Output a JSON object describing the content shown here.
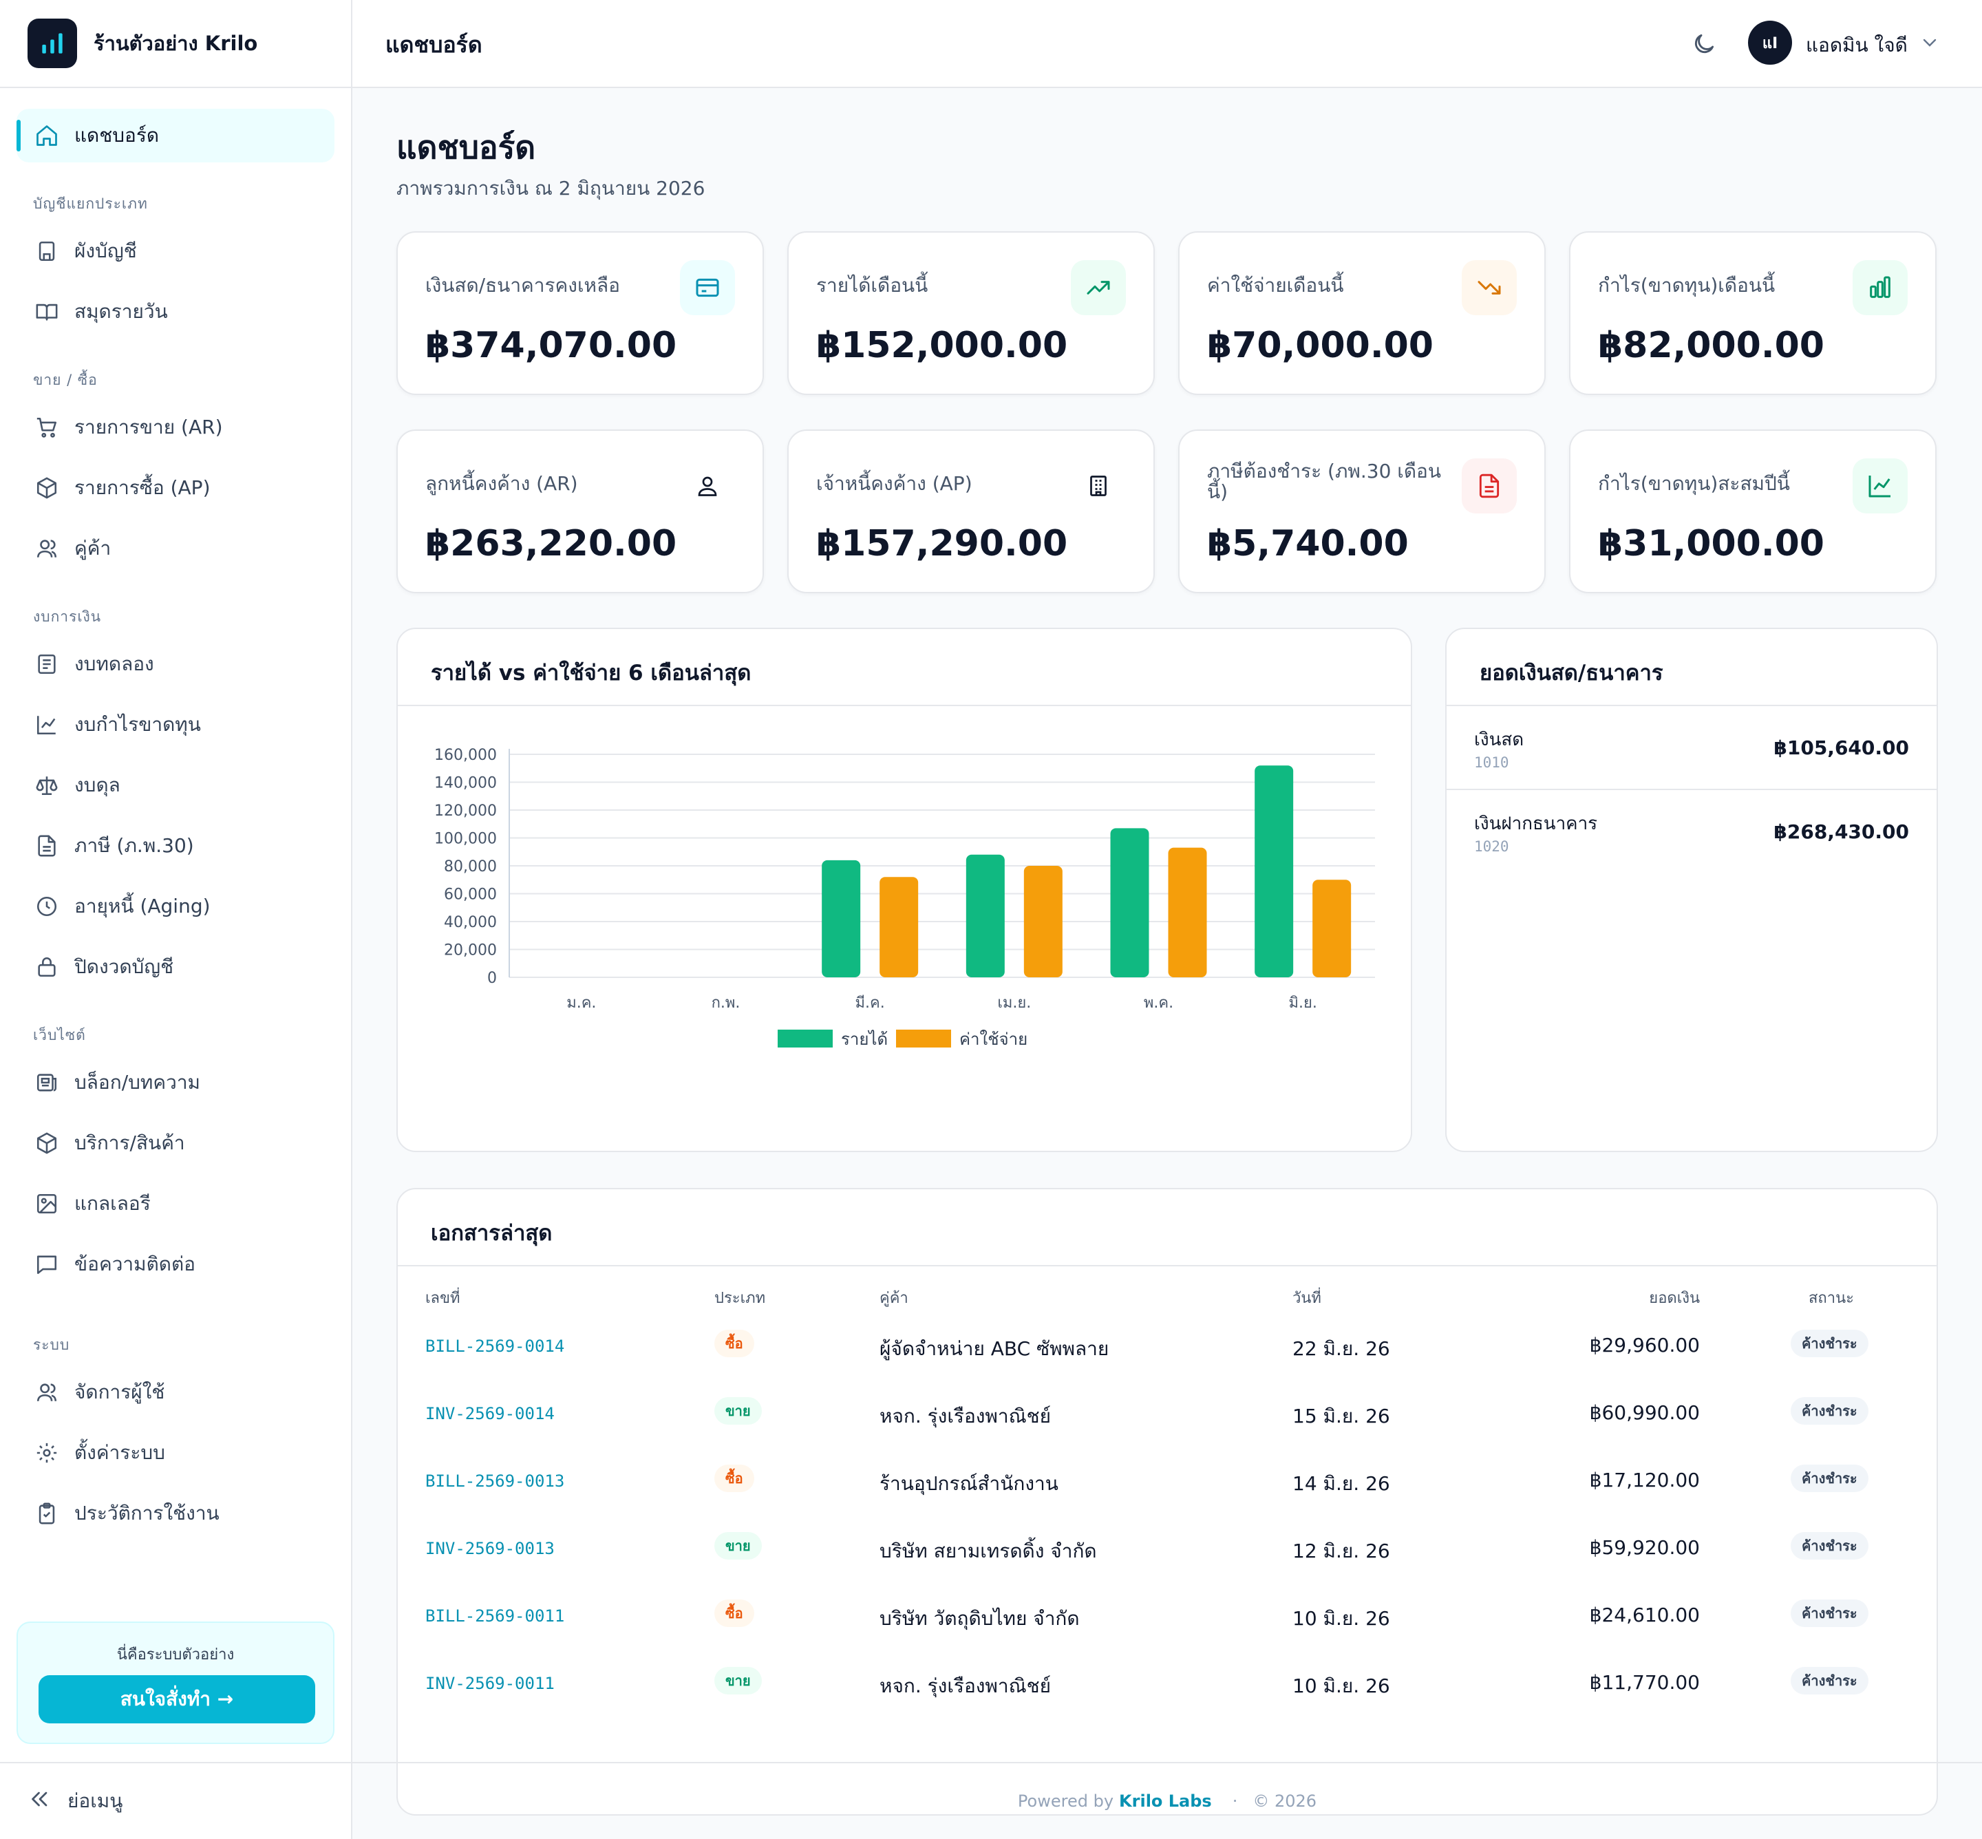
{
  "app": {
    "name": "ร้านตัวอย่าง Krilo"
  },
  "topbar": {
    "title": "แดชบอร์ด",
    "user_initials": "แI",
    "user_name": "แอดมิน ใจดี"
  },
  "sidebar": {
    "active": "แดชบอร์ด",
    "sections": {
      "ledger": "บัญชีแยกประเภท",
      "sales": "ขาย / ซื้อ",
      "finance": "งบการเงิน",
      "website": "เว็บไซต์",
      "system": "ระบบ"
    },
    "items": {
      "dashboard": "แดชบอร์ด",
      "chart_of_accounts": "ผังบัญชี",
      "journal": "สมุดรายวัน",
      "sales_ar": "รายการขาย (AR)",
      "purchases_ap": "รายการซื้อ (AP)",
      "partners": "คู่ค้า",
      "trial_balance": "งบทดลอง",
      "profit_loss": "งบกำไรขาดทุน",
      "balance_sheet": "งบดุล",
      "tax": "ภาษี (ภ.พ.30)",
      "aging": "อายุหนี้ (Aging)",
      "close_period": "ปิดงวดบัญชี",
      "blog": "บล็อก/บทความ",
      "services": "บริการ/สินค้า",
      "gallery": "แกลเลอรี",
      "contact": "ข้อความติดต่อ",
      "users": "จัดการผู้ใช้",
      "settings": "ตั้งค่าระบบ",
      "audit": "ประวัติการใช้งาน"
    },
    "promo_text": "นี่คือระบบตัวอย่าง",
    "promo_button": "สนใจสั่งทำ →",
    "collapse_label": "ย่อเมนู"
  },
  "page": {
    "title": "แดชบอร์ด",
    "subtitle": "ภาพรวมการเงิน ณ 2 มิถุนายน 2026"
  },
  "cards": [
    {
      "label": "เงินสด/ธนาคารคงเหลือ",
      "value": "฿374,070.00",
      "icon": "credit-card-icon"
    },
    {
      "label": "รายได้เดือนนี้",
      "value": "฿152,000.00",
      "icon": "trending-up-icon"
    },
    {
      "label": "ค่าใช้จ่ายเดือนนี้",
      "value": "฿70,000.00",
      "icon": "trending-down-icon"
    },
    {
      "label": "กำไร(ขาดทุน)เดือนนี้",
      "value": "฿82,000.00",
      "icon": "bar-chart-icon"
    },
    {
      "label": "ลูกหนี้คงค้าง (AR)",
      "value": "฿263,220.00",
      "icon": "user-icon"
    },
    {
      "label": "เจ้าหนี้คงค้าง (AP)",
      "value": "฿157,290.00",
      "icon": "building-icon"
    },
    {
      "label": "ภาษีต้องชำระ (ภพ.30 เดือนนี้)",
      "value": "฿5,740.00",
      "icon": "document-icon"
    },
    {
      "label": "กำไร(ขาดทุน)สะสมปีนี้",
      "value": "฿31,000.00",
      "icon": "line-chart-icon"
    }
  ],
  "chart_panel": {
    "title": "รายได้ vs ค่าใช้จ่าย 6 เดือนล่าสุด"
  },
  "chart_data": {
    "type": "bar",
    "title": "รายได้ vs ค่าใช้จ่าย 6 เดือนล่าสุด",
    "categories": [
      "ม.ค.",
      "ก.พ.",
      "มี.ค.",
      "เม.ย.",
      "พ.ค.",
      "มิ.ย."
    ],
    "series": [
      {
        "name": "รายได้",
        "values": [
          0,
          0,
          84000,
          88000,
          107000,
          152000
        ],
        "color": "#10b981"
      },
      {
        "name": "ค่าใช้จ่าย",
        "values": [
          0,
          0,
          72000,
          80000,
          93000,
          70000
        ],
        "color": "#f59e0b"
      }
    ],
    "ylim": [
      0,
      160000
    ],
    "yticks": [
      "160,000",
      "140,000",
      "120,000",
      "100,000",
      "80,000",
      "60,000",
      "40,000",
      "20,000",
      "0"
    ],
    "ytick_values": [
      160000,
      140000,
      120000,
      100000,
      80000,
      60000,
      40000,
      20000,
      0
    ],
    "grid": true,
    "legend": "bottom-center"
  },
  "bank_panel": {
    "title": "ยอดเงินสด/ธนาคาร",
    "rows": [
      {
        "name": "เงินสด",
        "code": "1010",
        "amount": "฿105,640.00"
      },
      {
        "name": "เงินฝากธนาคาร",
        "code": "1020",
        "amount": "฿268,430.00"
      }
    ]
  },
  "docs": {
    "title": "เอกสารล่าสุด",
    "headers": {
      "number": "เลขที่",
      "type": "ประเภท",
      "partner": "คู่ค้า",
      "date": "วันที่",
      "amount": "ยอดเงิน",
      "status": "สถานะ"
    },
    "rows": [
      {
        "number": "BILL-2569-0014",
        "type": "ซื้อ",
        "kind": "buy",
        "partner": "ผู้จัดจำหน่าย ABC ซัพพลาย",
        "date": "22 มิ.ย. 26",
        "amount": "฿29,960.00",
        "status": "ค้างชำระ"
      },
      {
        "number": "INV-2569-0014",
        "type": "ขาย",
        "kind": "sell",
        "partner": "หจก. รุ่งเรืองพาณิชย์",
        "date": "15 มิ.ย. 26",
        "amount": "฿60,990.00",
        "status": "ค้างชำระ"
      },
      {
        "number": "BILL-2569-0013",
        "type": "ซื้อ",
        "kind": "buy",
        "partner": "ร้านอุปกรณ์สำนักงาน",
        "date": "14 มิ.ย. 26",
        "amount": "฿17,120.00",
        "status": "ค้างชำระ"
      },
      {
        "number": "INV-2569-0013",
        "type": "ขาย",
        "kind": "sell",
        "partner": "บริษัท สยามเทรดดิ้ง จำกัด",
        "date": "12 มิ.ย. 26",
        "amount": "฿59,920.00",
        "status": "ค้างชำระ"
      },
      {
        "number": "BILL-2569-0011",
        "type": "ซื้อ",
        "kind": "buy",
        "partner": "บริษัท วัตถุดิบไทย จำกัด",
        "date": "10 มิ.ย. 26",
        "amount": "฿24,610.00",
        "status": "ค้างชำระ"
      },
      {
        "number": "INV-2569-0011",
        "type": "ขาย",
        "kind": "sell",
        "partner": "หจก. รุ่งเรืองพาณิชย์",
        "date": "10 มิ.ย. 26",
        "amount": "฿11,770.00",
        "status": "ค้างชำระ"
      }
    ]
  },
  "footer": {
    "powered": "Powered by",
    "brand": "Krilo Labs",
    "sep": "·",
    "year": "© 2026"
  }
}
